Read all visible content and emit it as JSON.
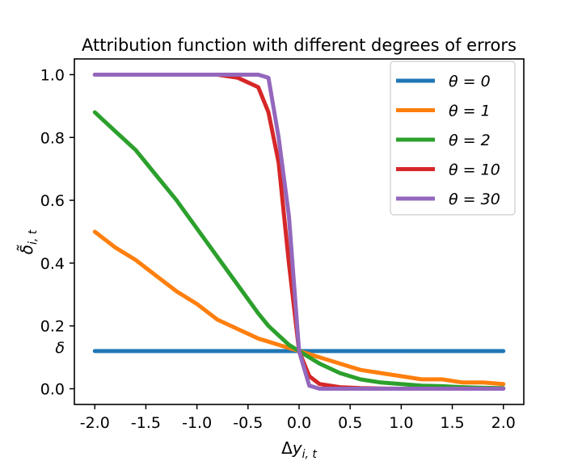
{
  "chart_data": {
    "type": "line",
    "title": "Attribution function with different degrees of errors",
    "xlabel": "Δy_{i,t}",
    "ylabel": "δ̃_{i,t}",
    "xlim": [
      -2.2,
      2.2
    ],
    "ylim": [
      -0.05,
      1.05
    ],
    "xticks": [
      -2.0,
      -1.5,
      -1.0,
      -0.5,
      0.0,
      0.5,
      1.0,
      1.5,
      2.0
    ],
    "xtick_labels": [
      "-2.0",
      "-1.5",
      "-1.0",
      "-0.5",
      "0.0",
      "0.5",
      "1.0",
      "1.5",
      "2.0"
    ],
    "yticks": [
      0.0,
      0.2,
      0.4,
      0.6,
      0.8,
      1.0
    ],
    "ytick_labels": [
      "0.0",
      "0.2",
      "0.4",
      "0.6",
      "0.8",
      "1.0"
    ],
    "extra_ytick": {
      "value": 0.12,
      "label": "δ"
    },
    "grid": false,
    "legend_position": "top-right",
    "x": [
      -2.0,
      -1.8,
      -1.6,
      -1.4,
      -1.2,
      -1.0,
      -0.8,
      -0.6,
      -0.4,
      -0.3,
      -0.2,
      -0.1,
      0.0,
      0.1,
      0.2,
      0.4,
      0.6,
      0.8,
      1.0,
      1.2,
      1.4,
      1.6,
      1.8,
      2.0
    ],
    "series": [
      {
        "name": "θ = 0",
        "color": "#1f77b4",
        "values": [
          0.12,
          0.12,
          0.12,
          0.12,
          0.12,
          0.12,
          0.12,
          0.12,
          0.12,
          0.12,
          0.12,
          0.12,
          0.12,
          0.12,
          0.12,
          0.12,
          0.12,
          0.12,
          0.12,
          0.12,
          0.12,
          0.12,
          0.12,
          0.12
        ]
      },
      {
        "name": "θ = 1",
        "color": "#ff7f0e",
        "values": [
          0.5,
          0.45,
          0.41,
          0.36,
          0.31,
          0.27,
          0.22,
          0.19,
          0.16,
          0.15,
          0.14,
          0.13,
          0.12,
          0.11,
          0.1,
          0.08,
          0.06,
          0.05,
          0.04,
          0.03,
          0.03,
          0.02,
          0.02,
          0.015
        ]
      },
      {
        "name": "θ = 2",
        "color": "#2ca02c",
        "values": [
          0.88,
          0.82,
          0.76,
          0.68,
          0.6,
          0.51,
          0.42,
          0.33,
          0.24,
          0.2,
          0.17,
          0.14,
          0.12,
          0.1,
          0.08,
          0.05,
          0.03,
          0.02,
          0.015,
          0.01,
          0.008,
          0.005,
          0.003,
          0.002
        ]
      },
      {
        "name": "θ = 10",
        "color": "#d62728",
        "values": [
          1.0,
          1.0,
          1.0,
          1.0,
          1.0,
          1.0,
          1.0,
          0.99,
          0.96,
          0.88,
          0.72,
          0.4,
          0.12,
          0.04,
          0.015,
          0.005,
          0.002,
          0.001,
          0.0,
          0.0,
          0.0,
          0.0,
          0.0,
          0.0
        ]
      },
      {
        "name": "θ = 30",
        "color": "#9467bd",
        "values": [
          1.0,
          1.0,
          1.0,
          1.0,
          1.0,
          1.0,
          1.0,
          1.0,
          1.0,
          0.99,
          0.8,
          0.55,
          0.12,
          0.01,
          0.0,
          0.0,
          0.0,
          0.0,
          0.0,
          0.0,
          0.0,
          0.0,
          0.0,
          0.0
        ]
      }
    ]
  }
}
